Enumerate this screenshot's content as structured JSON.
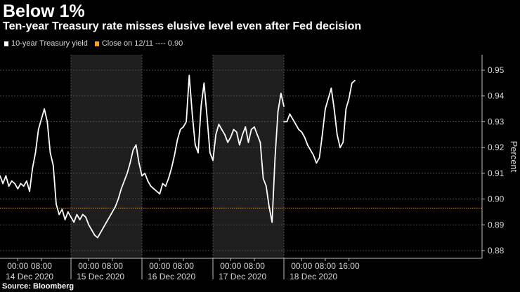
{
  "chart_data": {
    "type": "line",
    "title": "Below 1%",
    "subtitle": "Ten-year Treasury rate misses elusive level even after Fed decision",
    "ylabel": "Percent",
    "ylim": [
      0.877,
      0.956
    ],
    "yticks": [
      0.88,
      0.89,
      0.9,
      0.91,
      0.92,
      0.93,
      0.94,
      0.95
    ],
    "ytick_labels": [
      "0.88",
      "0.89",
      "0.90",
      "0.91",
      "0.92",
      "0.93",
      "0.94",
      "0.95"
    ],
    "x_range_hours": [
      -6,
      157
    ],
    "xticks": [
      {
        "hour": 0,
        "label": "00:00"
      },
      {
        "hour": 8,
        "label": "08:00"
      },
      {
        "hour": 24,
        "label": "00:00"
      },
      {
        "hour": 32,
        "label": "08:00"
      },
      {
        "hour": 48,
        "label": "00:00"
      },
      {
        "hour": 56,
        "label": "08:00"
      },
      {
        "hour": 72,
        "label": "00:00"
      },
      {
        "hour": 80,
        "label": "08:00"
      },
      {
        "hour": 96,
        "label": "00:00"
      },
      {
        "hour": 104,
        "label": "08:00"
      },
      {
        "hour": 112,
        "label": "16:00"
      }
    ],
    "day_labels": [
      {
        "hour": 4,
        "label": "14 Dec 2020"
      },
      {
        "hour": 28,
        "label": "15 Dec 2020"
      },
      {
        "hour": 52,
        "label": "16 Dec 2020"
      },
      {
        "hour": 76,
        "label": "17 Dec 2020"
      },
      {
        "hour": 100,
        "label": "18 Dec 2020"
      }
    ],
    "day_separators_hours": [
      18,
      42,
      66,
      90
    ],
    "shaded_ranges_hours": [
      [
        18,
        42
      ],
      [
        66,
        90
      ]
    ],
    "legend": [
      {
        "label": "10-year Treasury yield",
        "color": "#ffffff"
      },
      {
        "label": "Close on 12/11 ---- 0.90",
        "color": "#f0a030"
      }
    ],
    "reference_line": {
      "label": "Close on 12/11",
      "value": 0.8965,
      "color": "#f0a030"
    },
    "series": [
      {
        "name": "10-year Treasury yield",
        "color": "#ffffff",
        "segments": [
          {
            "x": [
              -6,
              -5,
              -4,
              -3,
              -2,
              -1,
              0,
              1,
              2,
              3,
              4,
              5,
              6,
              7,
              8,
              9,
              10,
              11,
              12,
              13,
              14,
              15,
              16,
              17,
              18
            ],
            "y": [
              0.909,
              0.906,
              0.909,
              0.905,
              0.907,
              0.906,
              0.904,
              0.906,
              0.905,
              0.907,
              0.903,
              0.912,
              0.918,
              0.927,
              0.931,
              0.935,
              0.93,
              0.918,
              0.913,
              0.898,
              0.894,
              0.896,
              0.892,
              0.895,
              0.893
            ]
          },
          {
            "x": [
              18,
              19,
              20,
              21,
              22,
              23,
              24,
              25,
              26,
              27,
              28,
              29,
              30,
              31,
              32,
              33,
              34,
              35,
              36,
              37,
              38,
              39,
              40,
              41,
              42
            ],
            "y": [
              0.893,
              0.891,
              0.894,
              0.892,
              0.894,
              0.893,
              0.89,
              0.888,
              0.886,
              0.885,
              0.887,
              0.889,
              0.891,
              0.893,
              0.895,
              0.897,
              0.9,
              0.904,
              0.907,
              0.91,
              0.914,
              0.919,
              0.921,
              0.914,
              0.909
            ]
          },
          {
            "x": [
              42,
              43,
              44,
              45,
              46,
              47,
              48,
              49,
              50,
              51,
              52,
              53,
              54,
              55,
              56,
              57,
              58,
              59,
              60,
              61,
              62,
              63,
              64,
              65,
              66
            ],
            "y": [
              0.909,
              0.91,
              0.907,
              0.905,
              0.904,
              0.903,
              0.902,
              0.906,
              0.905,
              0.908,
              0.912,
              0.917,
              0.923,
              0.927,
              0.928,
              0.93,
              0.948,
              0.933,
              0.921,
              0.918,
              0.936,
              0.945,
              0.932,
              0.918,
              0.915
            ]
          },
          {
            "x": [
              66,
              67,
              68,
              69,
              70,
              71,
              72,
              73,
              74,
              75,
              76,
              77,
              78,
              79,
              80,
              81,
              82,
              83,
              84,
              85,
              86,
              87,
              88,
              89,
              90
            ],
            "y": [
              0.915,
              0.925,
              0.929,
              0.927,
              0.925,
              0.922,
              0.924,
              0.927,
              0.926,
              0.921,
              0.925,
              0.928,
              0.922,
              0.927,
              0.928,
              0.925,
              0.922,
              0.908,
              0.905,
              0.897,
              0.891,
              0.916,
              0.934,
              0.941,
              0.936
            ]
          },
          {
            "x": [
              90,
              91,
              92,
              93,
              94,
              95,
              96,
              97,
              98,
              99,
              100,
              101,
              102,
              103,
              104,
              105,
              106,
              107,
              108,
              109,
              110,
              111,
              112,
              113,
              114
            ],
            "y": [
              0.93,
              0.93,
              0.933,
              0.931,
              0.929,
              0.927,
              0.926,
              0.924,
              0.921,
              0.919,
              0.917,
              0.914,
              0.916,
              0.925,
              0.935,
              0.939,
              0.943,
              0.935,
              0.925,
              0.92,
              0.922,
              0.935,
              0.939,
              0.945,
              0.946
            ]
          }
        ]
      }
    ]
  },
  "source": "Source: Bloomberg"
}
